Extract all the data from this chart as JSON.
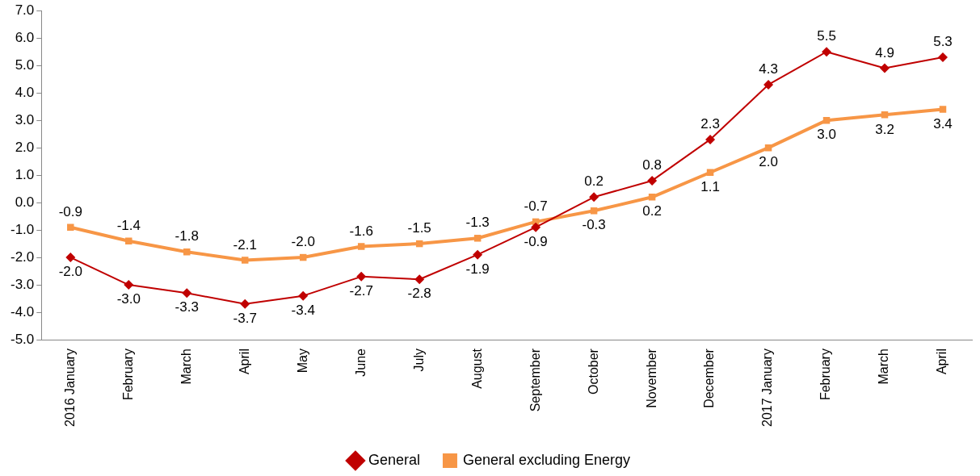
{
  "chart_data": {
    "type": "line",
    "categories": [
      "2016 January",
      "February",
      "March",
      "April",
      "May",
      "June",
      "July",
      "August",
      "September",
      "October",
      "November",
      "December",
      "2017 January",
      "February",
      "March",
      "April"
    ],
    "series": [
      {
        "name": "General",
        "color": "#c00000",
        "marker": "diamond",
        "values": [
          -2.0,
          -3.0,
          -3.3,
          -3.7,
          -3.4,
          -2.7,
          -2.8,
          -1.9,
          -0.9,
          0.2,
          0.8,
          2.3,
          4.3,
          5.5,
          4.9,
          5.3
        ],
        "value_labels": [
          "-2.0",
          "-3.0",
          "-3.3",
          "-3.7",
          "-3.4",
          "-2.7",
          "-2.8",
          "-1.9",
          "-0.9",
          "0.2",
          "0.8",
          "2.3",
          "4.3",
          "5.5",
          "4.9",
          "5.3"
        ]
      },
      {
        "name": "General excluding Energy",
        "color": "#f79646",
        "marker": "square",
        "values": [
          -0.9,
          -1.4,
          -1.8,
          -2.1,
          -2.0,
          -1.6,
          -1.5,
          -1.3,
          -0.7,
          -0.3,
          0.2,
          1.1,
          2.0,
          3.0,
          3.2,
          3.4
        ],
        "value_labels": [
          "-0.9",
          "-1.4",
          "-1.8",
          "-2.1",
          "-2.0",
          "-1.6",
          "-1.5",
          "-1.3",
          "-0.7",
          "-0.3",
          "0.2",
          "1.1",
          "2.0",
          "3.0",
          "3.2",
          "3.4"
        ]
      }
    ],
    "ylim": [
      -5,
      7
    ],
    "yticks": [
      {
        "value": -5,
        "label": "-5.0"
      },
      {
        "value": -4,
        "label": "-4.0"
      },
      {
        "value": -3,
        "label": "-3.0"
      },
      {
        "value": -2,
        "label": "-2.0"
      },
      {
        "value": -1,
        "label": "-1.0"
      },
      {
        "value": 0,
        "label": "0.0"
      },
      {
        "value": 1,
        "label": "1.0"
      },
      {
        "value": 2,
        "label": "2.0"
      },
      {
        "value": 3,
        "label": "3.0"
      },
      {
        "value": 4,
        "label": "4.0"
      },
      {
        "value": 5,
        "label": "5.0"
      },
      {
        "value": 6,
        "label": "6.0"
      },
      {
        "value": 7,
        "label": "7.0"
      }
    ],
    "grid": false,
    "legend": "bottom",
    "line_style": "solid"
  }
}
